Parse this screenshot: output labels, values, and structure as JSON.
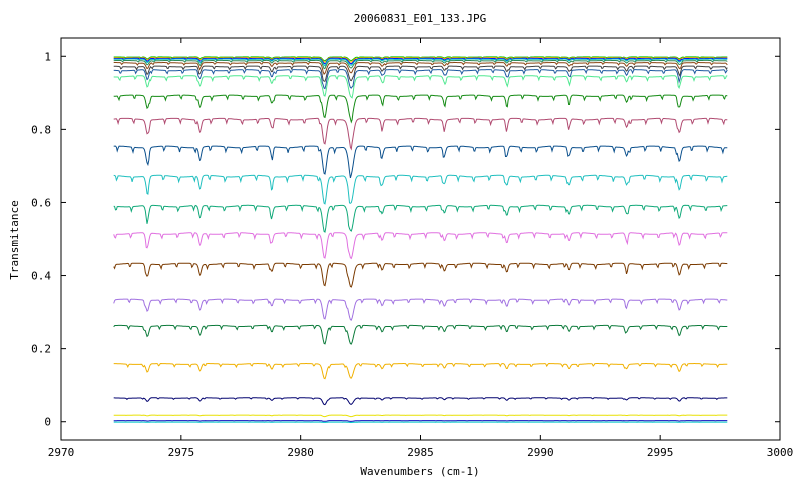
{
  "chart_data": {
    "type": "line",
    "title": "20060831_E01_133.JPG",
    "xlabel": "Wavenumbers (cm-1)",
    "ylabel": "Transmitance",
    "xlim": [
      2970,
      3000
    ],
    "ylim": [
      -0.05,
      1.05
    ],
    "xticks": [
      "2970",
      "2975",
      "2980",
      "2985",
      "2990",
      "2995",
      "3000"
    ],
    "yticks": [
      "0",
      "0.2",
      "0.4",
      "0.6",
      "0.8",
      "1"
    ],
    "grid": false,
    "legend": "none",
    "x_range": [
      2972.2,
      2997.8
    ],
    "absorption_lines_cm1": [
      2973.6,
      2975.8,
      2978.8,
      2981.0,
      2982.1,
      2983.4,
      2986.0,
      2988.6,
      2991.2,
      2993.6,
      2995.8
    ],
    "series": [
      {
        "color": "#00c000",
        "baseline": 0.998,
        "depth": 0.01
      },
      {
        "color": "#ffa500",
        "baseline": 0.996,
        "depth": 0.012
      },
      {
        "color": "#0000ff",
        "baseline": 0.994,
        "depth": 0.014
      },
      {
        "color": "#00bfbf",
        "baseline": 0.992,
        "depth": 0.016
      },
      {
        "color": "#2e8b57",
        "baseline": 0.988,
        "depth": 0.02
      },
      {
        "color": "#8b4513",
        "baseline": 0.982,
        "depth": 0.028
      },
      {
        "color": "#404040",
        "baseline": 0.972,
        "depth": 0.04
      },
      {
        "color": "#1e5aa0",
        "baseline": 0.962,
        "depth": 0.05
      },
      {
        "color": "#50e890",
        "baseline": 0.945,
        "depth": 0.055
      },
      {
        "color": "#138a13",
        "baseline": 0.892,
        "depth": 0.062
      },
      {
        "color": "#b04a70",
        "baseline": 0.828,
        "depth": 0.07
      },
      {
        "color": "#0a4f8c",
        "baseline": 0.752,
        "depth": 0.075
      },
      {
        "color": "#1fbfbf",
        "baseline": 0.672,
        "depth": 0.075
      },
      {
        "color": "#0fa878",
        "baseline": 0.59,
        "depth": 0.07
      },
      {
        "color": "#e070e0",
        "baseline": 0.515,
        "depth": 0.068
      },
      {
        "color": "#7a3a00",
        "baseline": 0.432,
        "depth": 0.062
      },
      {
        "color": "#a070e0",
        "baseline": 0.334,
        "depth": 0.055
      },
      {
        "color": "#0b7a3a",
        "baseline": 0.262,
        "depth": 0.05
      },
      {
        "color": "#f0b000",
        "baseline": 0.158,
        "depth": 0.04
      },
      {
        "color": "#00006e",
        "baseline": 0.065,
        "depth": 0.018
      },
      {
        "color": "#e8e000",
        "baseline": 0.018,
        "depth": 0.004
      },
      {
        "color": "#1010c0",
        "baseline": 0.003,
        "depth": 0.002
      },
      {
        "color": "#00c8c8",
        "baseline": -0.001,
        "depth": 0.001
      }
    ]
  }
}
